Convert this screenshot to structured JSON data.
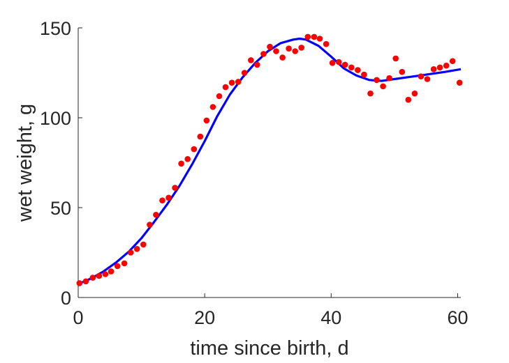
{
  "chart_data": {
    "type": "scatter",
    "title": "",
    "xlabel": "time since birth, d",
    "ylabel": "wet weight, g",
    "xlim": [
      0,
      60.5
    ],
    "ylim": [
      0,
      150
    ],
    "xticks": [
      0,
      20,
      40,
      60
    ],
    "yticks": [
      0,
      50,
      100,
      150
    ],
    "grid": false,
    "legend": "none",
    "series": [
      {
        "kind": "scatter",
        "color": "#ff0000",
        "points": [
          [
            0.2,
            8
          ],
          [
            1.2,
            9
          ],
          [
            2.3,
            11
          ],
          [
            3.3,
            12
          ],
          [
            4.3,
            13
          ],
          [
            5.2,
            14.5
          ],
          [
            6.2,
            17.5
          ],
          [
            7.3,
            19
          ],
          [
            8.3,
            25
          ],
          [
            9.3,
            27
          ],
          [
            10.3,
            29.5
          ],
          [
            11.3,
            40.5
          ],
          [
            12.3,
            46
          ],
          [
            13.3,
            54
          ],
          [
            14.3,
            55.5
          ],
          [
            15.3,
            61
          ],
          [
            16.3,
            74.5
          ],
          [
            17.3,
            77
          ],
          [
            18.3,
            82.5
          ],
          [
            19.3,
            89.5
          ],
          [
            20.3,
            98.5
          ],
          [
            21.3,
            106
          ],
          [
            22.3,
            112
          ],
          [
            23.3,
            117
          ],
          [
            24.3,
            119.5
          ],
          [
            25.3,
            120
          ],
          [
            26.3,
            125
          ],
          [
            27.3,
            132
          ],
          [
            28.3,
            129.5
          ],
          [
            29.3,
            135.5
          ],
          [
            30.3,
            139.5
          ],
          [
            31.3,
            137
          ],
          [
            32.3,
            133.5
          ],
          [
            33.3,
            138.5
          ],
          [
            34.3,
            137
          ],
          [
            35.3,
            139
          ],
          [
            36.3,
            145
          ],
          [
            37.3,
            145
          ],
          [
            38.2,
            144
          ],
          [
            39.2,
            141
          ],
          [
            40.2,
            130.5
          ],
          [
            41.2,
            131
          ],
          [
            42.2,
            129.5
          ],
          [
            43.2,
            128
          ],
          [
            44.2,
            126.5
          ],
          [
            45.2,
            124
          ],
          [
            46.2,
            113.5
          ],
          [
            47.2,
            121
          ],
          [
            48.2,
            117.5
          ],
          [
            49.2,
            122
          ],
          [
            50.2,
            133
          ],
          [
            51.2,
            125.5
          ],
          [
            52.2,
            110
          ],
          [
            53.2,
            113.5
          ],
          [
            54.2,
            123
          ],
          [
            55.2,
            121.5
          ],
          [
            56.2,
            127
          ],
          [
            57.2,
            128
          ],
          [
            58.2,
            129
          ],
          [
            59.2,
            131.5
          ],
          [
            60.3,
            119.5
          ]
        ]
      },
      {
        "kind": "line",
        "color": "#0000ff",
        "points": [
          [
            0,
            7.5
          ],
          [
            2,
            10.5
          ],
          [
            4,
            14.5
          ],
          [
            6,
            19.5
          ],
          [
            8,
            25.5
          ],
          [
            10,
            33
          ],
          [
            12,
            42
          ],
          [
            14,
            51.5
          ],
          [
            16,
            62
          ],
          [
            18,
            74
          ],
          [
            20,
            87
          ],
          [
            22,
            101
          ],
          [
            24,
            113
          ],
          [
            26,
            122.5
          ],
          [
            28,
            130.5
          ],
          [
            30,
            137
          ],
          [
            32,
            141.5
          ],
          [
            34,
            143.5
          ],
          [
            35,
            144
          ],
          [
            36,
            143.5
          ],
          [
            38,
            140
          ],
          [
            40,
            134
          ],
          [
            42,
            127.5
          ],
          [
            44,
            123.5
          ],
          [
            46,
            121
          ],
          [
            48,
            120.5
          ],
          [
            50,
            121.5
          ],
          [
            52,
            122.5
          ],
          [
            54,
            123.5
          ],
          [
            56,
            124.5
          ],
          [
            58,
            125.5
          ],
          [
            60.5,
            127
          ]
        ]
      }
    ]
  }
}
